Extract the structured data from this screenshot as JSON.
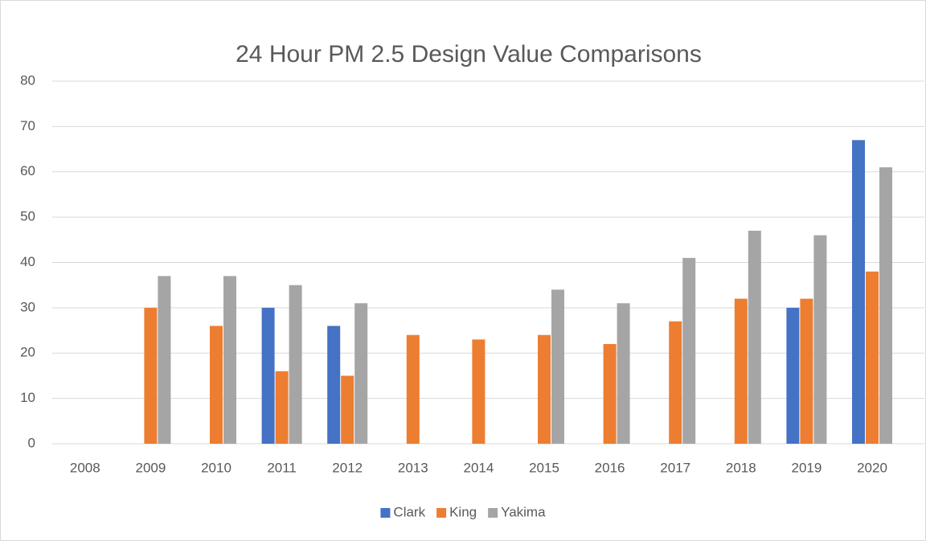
{
  "chart_data": {
    "type": "bar",
    "title": "24 Hour PM 2.5 Design Value Comparisons",
    "categories": [
      "2008",
      "2009",
      "2010",
      "2011",
      "2012",
      "2013",
      "2014",
      "2015",
      "2016",
      "2017",
      "2018",
      "2019",
      "2020"
    ],
    "series": [
      {
        "name": "Clark",
        "color": "#4472c4",
        "values": [
          null,
          null,
          null,
          30,
          26,
          null,
          null,
          null,
          null,
          null,
          null,
          30,
          67
        ]
      },
      {
        "name": "King",
        "color": "#ed7d31",
        "values": [
          null,
          30,
          26,
          16,
          15,
          24,
          23,
          24,
          22,
          27,
          32,
          32,
          38
        ]
      },
      {
        "name": "Yakima",
        "color": "#a5a5a5",
        "values": [
          null,
          37,
          37,
          35,
          31,
          null,
          null,
          34,
          31,
          41,
          47,
          46,
          61
        ]
      }
    ],
    "ylim": [
      0,
      80
    ],
    "yticks": [
      0,
      10,
      20,
      30,
      40,
      50,
      60,
      70,
      80
    ],
    "grid": true,
    "legend": "bottom"
  }
}
